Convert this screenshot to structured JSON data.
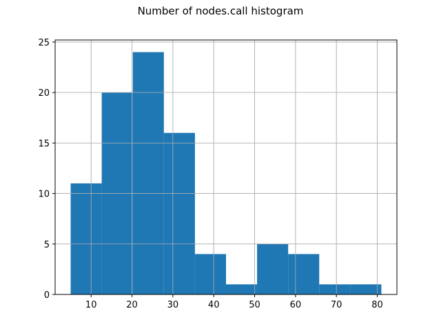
{
  "chart_data": {
    "type": "bar",
    "title": "Number of nodes.call histogram",
    "xlabel": "",
    "ylabel": "",
    "bin_edges": [
      5.0,
      12.6,
      20.2,
      27.8,
      35.4,
      43.0,
      50.6,
      58.2,
      65.8,
      73.4,
      81.0
    ],
    "values": [
      11,
      20,
      24,
      16,
      4,
      1,
      5,
      4,
      1,
      1
    ],
    "xlim": [
      1.2,
      84.8
    ],
    "ylim": [
      0,
      25.2
    ],
    "xticks": [
      10,
      20,
      30,
      40,
      50,
      60,
      70,
      80
    ],
    "yticks": [
      0,
      5,
      10,
      15,
      20,
      25
    ],
    "grid": true,
    "bar_color": "#1f77b4",
    "grid_color": "#b0b0b0"
  }
}
